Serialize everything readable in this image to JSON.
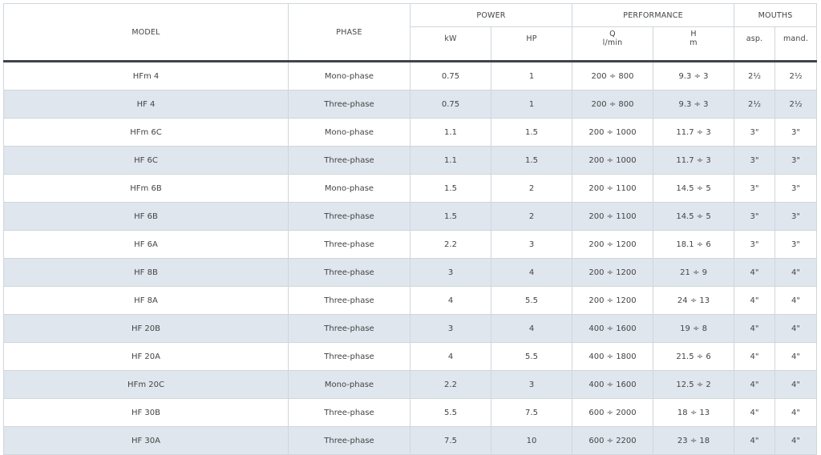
{
  "header": {
    "model": "MODEL",
    "phase": "PHASE",
    "power": "POWER",
    "kw": "kW",
    "hp": "HP",
    "performance": "PERFORMANCE",
    "q": "Q",
    "q_unit": "l/min",
    "h": "H",
    "h_unit": "m",
    "mouths": "MOUTHS",
    "asp": "asp.",
    "mand": "mand."
  },
  "rows": [
    {
      "model": "HFm 4",
      "phase": "Mono-phase",
      "kw": "0.75",
      "hp": "1",
      "q": "200 ÷ 800",
      "h": "9.3 ÷ 3",
      "asp": "2½",
      "mand": "2½"
    },
    {
      "model": "HF 4",
      "phase": "Three-phase",
      "kw": "0.75",
      "hp": "1",
      "q": "200 ÷ 800",
      "h": "9.3 ÷ 3",
      "asp": "2½",
      "mand": "2½"
    },
    {
      "model": "HFm 6C",
      "phase": "Mono-phase",
      "kw": "1.1",
      "hp": "1.5",
      "q": "200 ÷ 1000",
      "h": "11.7 ÷ 3",
      "asp": "3\"",
      "mand": "3\""
    },
    {
      "model": "HF 6C",
      "phase": "Three-phase",
      "kw": "1.1",
      "hp": "1.5",
      "q": "200 ÷ 1000",
      "h": "11.7 ÷ 3",
      "asp": "3\"",
      "mand": "3\""
    },
    {
      "model": "HFm 6B",
      "phase": "Mono-phase",
      "kw": "1.5",
      "hp": "2",
      "q": "200 ÷ 1100",
      "h": "14.5 ÷ 5",
      "asp": "3\"",
      "mand": "3\""
    },
    {
      "model": "HF 6B",
      "phase": "Three-phase",
      "kw": "1.5",
      "hp": "2",
      "q": "200 ÷ 1100",
      "h": "14.5 ÷ 5",
      "asp": "3\"",
      "mand": "3\""
    },
    {
      "model": "HF 6A",
      "phase": "Three-phase",
      "kw": "2.2",
      "hp": "3",
      "q": "200 ÷ 1200",
      "h": "18.1 ÷ 6",
      "asp": "3\"",
      "mand": "3\""
    },
    {
      "model": "HF 8B",
      "phase": "Three-phase",
      "kw": "3",
      "hp": "4",
      "q": "200 ÷ 1200",
      "h": "21 ÷ 9",
      "asp": "4\"",
      "mand": "4\""
    },
    {
      "model": "HF 8A",
      "phase": "Three-phase",
      "kw": "4",
      "hp": "5.5",
      "q": "200 ÷ 1200",
      "h": "24 ÷ 13",
      "asp": "4\"",
      "mand": "4\""
    },
    {
      "model": "HF 20B",
      "phase": "Three-phase",
      "kw": "3",
      "hp": "4",
      "q": "400 ÷ 1600",
      "h": "19 ÷ 8",
      "asp": "4\"",
      "mand": "4\""
    },
    {
      "model": "HF 20A",
      "phase": "Three-phase",
      "kw": "4",
      "hp": "5.5",
      "q": "400 ÷ 1800",
      "h": "21.5 ÷ 6",
      "asp": "4\"",
      "mand": "4\""
    },
    {
      "model": "HFm 20C",
      "phase": "Mono-phase",
      "kw": "2.2",
      "hp": "3",
      "q": "400 ÷ 1600",
      "h": "12.5 ÷ 2",
      "asp": "4\"",
      "mand": "4\""
    },
    {
      "model": "HF 30B",
      "phase": "Three-phase",
      "kw": "5.5",
      "hp": "7.5",
      "q": "600 ÷ 2000",
      "h": "18 ÷ 13",
      "asp": "4\"",
      "mand": "4\""
    },
    {
      "model": "HF 30A",
      "phase": "Three-phase",
      "kw": "7.5",
      "hp": "10",
      "q": "600 ÷ 2200",
      "h": "23 ÷ 18",
      "asp": "4\"",
      "mand": "4\""
    }
  ]
}
